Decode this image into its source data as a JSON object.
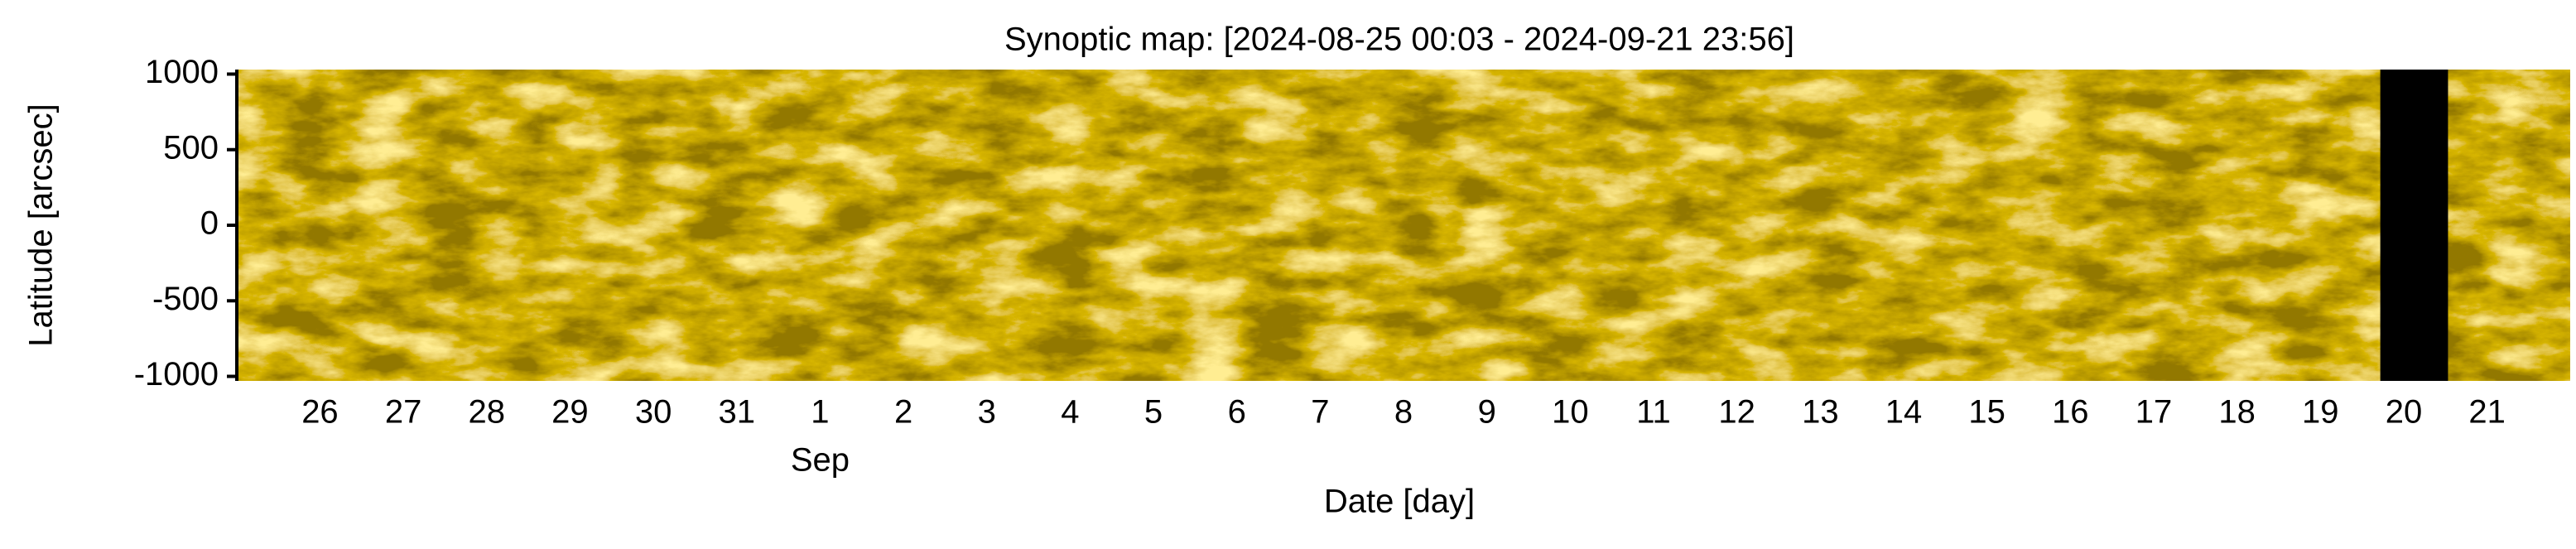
{
  "chart_data": {
    "type": "synoptic-map",
    "title": "Synoptic map: [2024-08-25 00:03 - 2024-09-21 23:56]",
    "x_label": "Date [day]",
    "y_label": "Latitude [arcsec]",
    "xlim": [
      "2024-08-25 00:03",
      "2024-09-21 23:56"
    ],
    "ylim": [
      -1030,
      1030
    ],
    "yticks": [
      1000,
      500,
      0,
      -500,
      -1000
    ],
    "xticks": [
      {
        "value": "2024-08-26",
        "label": "26"
      },
      {
        "value": "2024-08-27",
        "label": "27"
      },
      {
        "value": "2024-08-28",
        "label": "28"
      },
      {
        "value": "2024-08-29",
        "label": "29"
      },
      {
        "value": "2024-08-30",
        "label": "30"
      },
      {
        "value": "2024-08-31",
        "label": "31"
      },
      {
        "value": "2024-09-01",
        "label": "1"
      },
      {
        "value": "2024-09-02",
        "label": "2"
      },
      {
        "value": "2024-09-03",
        "label": "3"
      },
      {
        "value": "2024-09-04",
        "label": "4"
      },
      {
        "value": "2024-09-05",
        "label": "5"
      },
      {
        "value": "2024-09-06",
        "label": "6"
      },
      {
        "value": "2024-09-07",
        "label": "7"
      },
      {
        "value": "2024-09-08",
        "label": "8"
      },
      {
        "value": "2024-09-09",
        "label": "9"
      },
      {
        "value": "2024-09-10",
        "label": "10"
      },
      {
        "value": "2024-09-11",
        "label": "11"
      },
      {
        "value": "2024-09-12",
        "label": "12"
      },
      {
        "value": "2024-09-13",
        "label": "13"
      },
      {
        "value": "2024-09-14",
        "label": "14"
      },
      {
        "value": "2024-09-15",
        "label": "15"
      },
      {
        "value": "2024-09-16",
        "label": "16"
      },
      {
        "value": "2024-09-17",
        "label": "17"
      },
      {
        "value": "2024-09-18",
        "label": "18"
      },
      {
        "value": "2024-09-19",
        "label": "19"
      },
      {
        "value": "2024-09-20",
        "label": "20"
      },
      {
        "value": "2024-09-21",
        "label": "21"
      }
    ],
    "month_labels": [
      {
        "value": "2024-09-01",
        "label": "Sep"
      }
    ],
    "missing": [
      {
        "start": "2024-09-19 17:15",
        "end": "2024-09-20 12:45"
      }
    ],
    "colormap": [
      "#4a3000",
      "#b07800",
      "#ffd84a"
    ],
    "missing_color": "#000000"
  }
}
